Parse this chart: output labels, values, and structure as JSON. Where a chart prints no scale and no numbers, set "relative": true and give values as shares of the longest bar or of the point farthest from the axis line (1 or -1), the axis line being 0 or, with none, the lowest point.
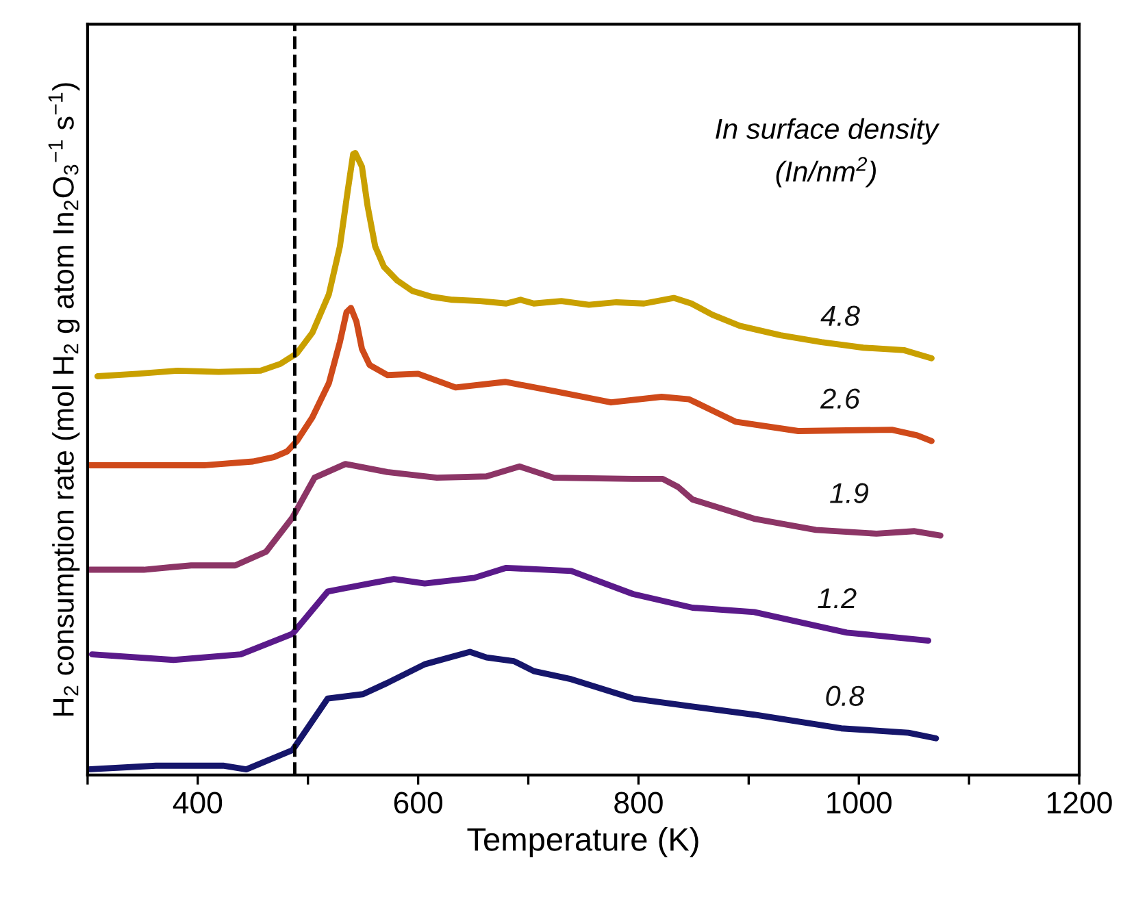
{
  "chart_data": {
    "type": "line",
    "relative": true,
    "xlabel": "Temperature (K)",
    "ylabel": "H$_{2}$ consumption rate (mol H$_{2}$ g atom In$_{2}$O$_{3}$$^{−1}$ s$^{−1}$)",
    "legend_title": "In surface density\n(In/nm$^{2}$)",
    "xlim": [
      300,
      1200
    ],
    "xticks": [
      {
        "value": 300,
        "label": null
      },
      400,
      {
        "value": 500,
        "label": null
      },
      600,
      {
        "value": 700,
        "label": null
      },
      800,
      {
        "value": 900,
        "label": null
      },
      1000,
      {
        "value": 1100,
        "label": null
      },
      1200
    ],
    "grid": false,
    "marker": "none",
    "line_style": "solid",
    "ref_lines": [
      {
        "axis": "x",
        "value": 488,
        "color": "#000000",
        "line_style": "dashed"
      }
    ],
    "series": [
      {
        "name": "4.8",
        "color": "#c9a000",
        "x": [
          309,
          345,
          382,
          419,
          457,
          475,
          490,
          504,
          519,
          529,
          536,
          541,
          543,
          549,
          554,
          561,
          569,
          581,
          595,
          612,
          631,
          656,
          680,
          693,
          705,
          730,
          755,
          780,
          805,
          832,
          848,
          867,
          892,
          929,
          966,
          1004,
          1041,
          1066
        ],
        "values": [
          0.641,
          0.645,
          0.65,
          0.648,
          0.65,
          0.661,
          0.678,
          0.711,
          0.773,
          0.85,
          0.938,
          0.998,
          1,
          0.978,
          0.916,
          0.85,
          0.817,
          0.795,
          0.778,
          0.769,
          0.764,
          0.762,
          0.758,
          0.764,
          0.758,
          0.762,
          0.756,
          0.76,
          0.758,
          0.767,
          0.758,
          0.74,
          0.722,
          0.707,
          0.696,
          0.687,
          0.683,
          0.67
        ]
      },
      {
        "name": "2.6",
        "color": "#cf4a1a",
        "x": [
          300,
          345,
          407,
          450,
          469,
          481,
          490,
          504,
          519,
          529,
          535,
          539,
          544,
          549,
          556,
          572,
          600,
          634,
          679,
          724,
          775,
          821,
          846,
          867,
          888,
          945,
          1030,
          1053,
          1066
        ],
        "values": [
          0.498,
          0.498,
          0.498,
          0.504,
          0.511,
          0.52,
          0.537,
          0.575,
          0.63,
          0.696,
          0.744,
          0.751,
          0.729,
          0.685,
          0.659,
          0.643,
          0.645,
          0.623,
          0.632,
          0.617,
          0.599,
          0.608,
          0.604,
          0.586,
          0.568,
          0.553,
          0.555,
          0.546,
          0.537
        ]
      },
      {
        "name": "1.9",
        "color": "#8c3566",
        "x": [
          300,
          351,
          394,
          434,
          462,
          486,
          506,
          534,
          572,
          617,
          662,
          692,
          723,
          795,
          822,
          836,
          849,
          905,
          961,
          1016,
          1050,
          1074
        ],
        "values": [
          0.33,
          0.33,
          0.337,
          0.337,
          0.359,
          0.414,
          0.478,
          0.5,
          0.487,
          0.478,
          0.48,
          0.496,
          0.478,
          0.476,
          0.476,
          0.463,
          0.443,
          0.412,
          0.394,
          0.388,
          0.392,
          0.385
        ]
      },
      {
        "name": "1.2",
        "color": "#5a1a8a",
        "x": [
          304,
          378,
          439,
          486,
          518,
          556,
          578,
          606,
          651,
          680,
          739,
          795,
          849,
          905,
          989,
          1063
        ],
        "values": [
          0.194,
          0.185,
          0.194,
          0.227,
          0.295,
          0.308,
          0.315,
          0.308,
          0.317,
          0.333,
          0.328,
          0.291,
          0.269,
          0.262,
          0.229,
          0.216
        ]
      },
      {
        "name": "0.8",
        "color": "#16166b",
        "x": [
          300,
          362,
          423,
          444,
          486,
          518,
          550,
          572,
          606,
          647,
          662,
          687,
          705,
          739,
          795,
          849,
          905,
          984,
          1045,
          1070
        ],
        "values": [
          0.009,
          0.015,
          0.015,
          0.009,
          0.04,
          0.123,
          0.13,
          0.148,
          0.178,
          0.198,
          0.189,
          0.183,
          0.167,
          0.154,
          0.123,
          0.11,
          0.097,
          0.075,
          0.068,
          0.059
        ]
      }
    ]
  }
}
